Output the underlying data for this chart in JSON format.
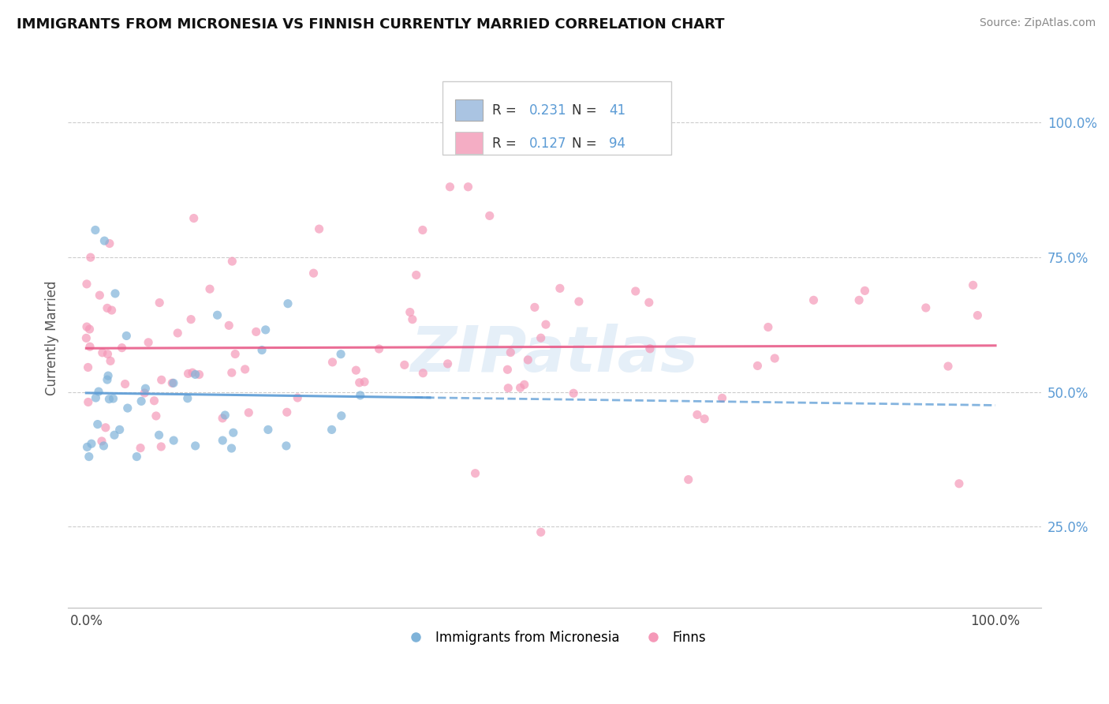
{
  "title": "IMMIGRANTS FROM MICRONESIA VS FINNISH CURRENTLY MARRIED CORRELATION CHART",
  "source": "Source: ZipAtlas.com",
  "ylabel": "Currently Married",
  "R1": "0.231",
  "N1": "41",
  "R2": "0.127",
  "N2": "94",
  "color_blue": "#aac4e2",
  "color_pink": "#f4adc4",
  "trendline_blue_color": "#5b9bd5",
  "trendline_pink_color": "#e85d8a",
  "scatter_blue": "#7fb3d9",
  "scatter_pink": "#f599b8",
  "legend_label1": "Immigrants from Micronesia",
  "legend_label2": "Finns",
  "background_color": "#ffffff",
  "grid_color": "#cccccc",
  "watermark": "ZIPatlas",
  "watermark_color": "#c0d8ee",
  "y_ticks": [
    0.25,
    0.5,
    0.75,
    1.0
  ],
  "y_tick_labels": [
    "25.0%",
    "50.0%",
    "75.0%",
    "100.0%"
  ],
  "x_tick_labels": [
    "0.0%",
    "100.0%"
  ],
  "ylim": [
    0.1,
    1.1
  ],
  "xlim": [
    -0.02,
    1.05
  ]
}
